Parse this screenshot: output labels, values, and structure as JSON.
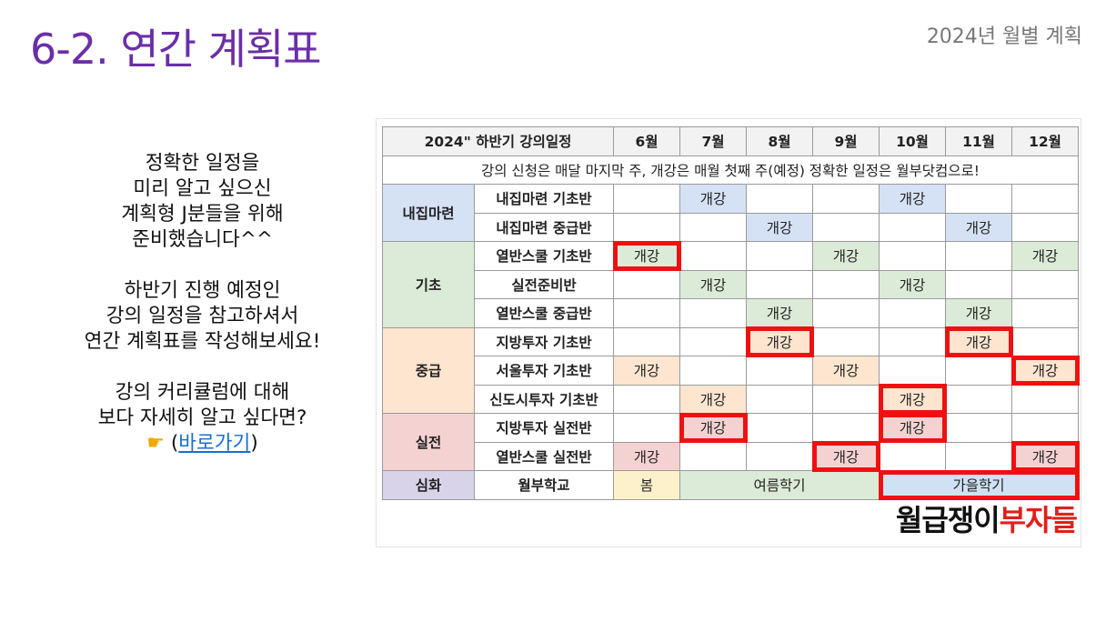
{
  "page": {
    "title": "6-2. 연간 계획표",
    "subtitle": "2024년 월별 계획"
  },
  "left_text": {
    "p1": [
      "정확한 일정을",
      "미리 알고 싶으신",
      "계획형 J분들을 위해",
      "준비했습니다^^"
    ],
    "p2": [
      "하반기 진행 예정인",
      "강의 일정을 참고하셔서",
      "연간 계획표를 작성해보세요!"
    ],
    "p3": [
      "강의 커리큘럼에 대해",
      "보다 자세히 알고 싶다면?"
    ],
    "link_prefix": "(",
    "link_label": "바로가기",
    "link_suffix": ")",
    "hand_icon": "pointing-hand-icon"
  },
  "schedule": {
    "header_title": "2024\" 하반기 강의일정",
    "months": [
      "6월",
      "7월",
      "8월",
      "9월",
      "10월",
      "11월",
      "12월"
    ],
    "notice": "강의 신청은 매달 마지막 주, 개강은 매월 첫째 주(예정) 정확한 일정은 월부닷컴으로!",
    "open_label": "개강",
    "categories": [
      {
        "name": "내집마련",
        "color": "#d5e1f5",
        "courses": [
          {
            "name": "내집마련 기초반",
            "open": [
              false,
              true,
              false,
              false,
              true,
              false,
              false
            ]
          },
          {
            "name": "내집마련 중급반",
            "open": [
              false,
              false,
              true,
              false,
              false,
              true,
              false
            ]
          }
        ]
      },
      {
        "name": "기초",
        "color": "#dcebd7",
        "courses": [
          {
            "name": "열반스쿨 기초반",
            "open": [
              true,
              false,
              false,
              true,
              false,
              false,
              true
            ]
          },
          {
            "name": "실전준비반",
            "open": [
              false,
              true,
              false,
              false,
              true,
              false,
              false
            ]
          },
          {
            "name": "열반스쿨 중급반",
            "open": [
              false,
              false,
              true,
              false,
              false,
              true,
              false
            ]
          }
        ]
      },
      {
        "name": "중급",
        "color": "#fde5cf",
        "courses": [
          {
            "name": "지방투자 기초반",
            "open": [
              false,
              false,
              true,
              false,
              false,
              true,
              false
            ]
          },
          {
            "name": "서울투자 기초반",
            "open": [
              true,
              false,
              false,
              true,
              false,
              false,
              true
            ]
          },
          {
            "name": "신도시투자 기초반",
            "open": [
              false,
              true,
              false,
              false,
              true,
              false,
              false
            ]
          }
        ]
      },
      {
        "name": "실전",
        "color": "#f5d2d2",
        "courses": [
          {
            "name": "지방투자 실전반",
            "open": [
              false,
              true,
              false,
              false,
              true,
              false,
              false
            ]
          },
          {
            "name": "열반스쿨 실전반",
            "open": [
              true,
              false,
              false,
              true,
              false,
              false,
              true
            ]
          }
        ]
      }
    ],
    "advanced": {
      "category": "심화",
      "course": "월부학교",
      "terms": [
        "봄",
        "여름학기",
        "가을학기"
      ]
    },
    "brand_black": "월급쟁이",
    "brand_red": "부자들"
  }
}
